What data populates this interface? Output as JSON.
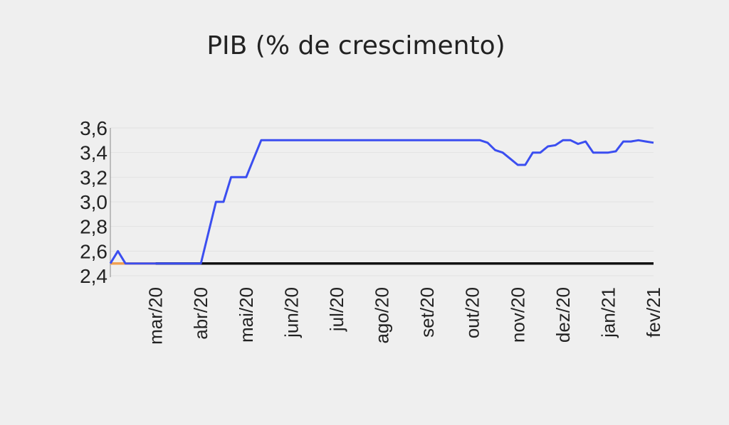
{
  "chart_data": {
    "type": "line",
    "title": "PIB (% de crescimento)",
    "categories": [
      null,
      null,
      null,
      null,
      null,
      null,
      "mar/20",
      null,
      null,
      null,
      null,
      null,
      "abr/20",
      null,
      null,
      null,
      null,
      null,
      "mai/20",
      null,
      null,
      null,
      null,
      null,
      "jun/20",
      null,
      null,
      null,
      null,
      null,
      "jul/20",
      null,
      null,
      null,
      null,
      null,
      "ago/20",
      null,
      null,
      null,
      null,
      null,
      "set/20",
      null,
      null,
      null,
      null,
      null,
      "out/20",
      null,
      null,
      null,
      null,
      null,
      "nov/20",
      null,
      null,
      null,
      null,
      null,
      "dez/20",
      null,
      null,
      null,
      null,
      null,
      "jan/21",
      null,
      null,
      null,
      null,
      null,
      "fev/21"
    ],
    "series": [
      {
        "color": "#3b4ef0",
        "values": [
          2.5,
          2.6,
          2.5,
          2.5,
          2.5,
          2.5,
          2.5,
          2.5,
          2.5,
          2.5,
          2.5,
          2.5,
          2.5,
          2.75,
          3.0,
          3.0,
          3.2,
          3.2,
          3.2,
          3.35,
          3.5,
          3.5,
          3.5,
          3.5,
          3.5,
          3.5,
          3.5,
          3.5,
          3.5,
          3.5,
          3.5,
          3.5,
          3.5,
          3.5,
          3.5,
          3.5,
          3.5,
          3.5,
          3.5,
          3.5,
          3.5,
          3.5,
          3.5,
          3.5,
          3.5,
          3.5,
          3.5,
          3.5,
          3.5,
          3.5,
          3.48,
          3.42,
          3.4,
          3.35,
          3.3,
          3.3,
          3.4,
          3.4,
          3.45,
          3.46,
          3.5,
          3.5,
          3.47,
          3.49,
          3.4,
          3.4,
          3.4,
          3.41,
          3.49,
          3.49,
          3.5,
          3.49,
          3.48
        ]
      },
      {
        "color": "#f0a050",
        "values": [
          2.5,
          2.5,
          2.5,
          2.5,
          2.5,
          2.5,
          2.5,
          null,
          null,
          null,
          null,
          null,
          null,
          null,
          null,
          null,
          null,
          null,
          null,
          null,
          null,
          null,
          null,
          null,
          null,
          null,
          null,
          null,
          null,
          null,
          null,
          null,
          null,
          null,
          null,
          null,
          null,
          null,
          null,
          null,
          null,
          null,
          null,
          null,
          null,
          null,
          null,
          null,
          null,
          null,
          null,
          null,
          null,
          null,
          null,
          null,
          null,
          null,
          null,
          null,
          null,
          null,
          null,
          null,
          null,
          null,
          null,
          null,
          null,
          null,
          null,
          null,
          null
        ]
      },
      {
        "color": "#111111",
        "values": [
          null,
          null,
          null,
          null,
          null,
          null,
          2.5,
          2.5,
          2.5,
          2.5,
          2.5,
          2.5,
          2.5,
          2.5,
          2.5,
          2.5,
          2.5,
          2.5,
          2.5,
          2.5,
          2.5,
          2.5,
          2.5,
          2.5,
          2.5,
          2.5,
          2.5,
          2.5,
          2.5,
          2.5,
          2.5,
          2.5,
          2.5,
          2.5,
          2.5,
          2.5,
          2.5,
          2.5,
          2.5,
          2.5,
          2.5,
          2.5,
          2.5,
          2.5,
          2.5,
          2.5,
          2.5,
          2.5,
          2.5,
          2.5,
          2.5,
          2.5,
          2.5,
          2.5,
          2.5,
          2.5,
          2.5,
          2.5,
          2.5,
          2.5,
          2.5,
          2.5,
          2.5,
          2.5,
          2.5,
          2.5,
          2.5,
          2.5,
          2.5,
          2.5,
          2.5,
          2.5,
          2.5
        ]
      }
    ],
    "ylim": [
      2.4,
      3.6
    ],
    "yticks": [
      {
        "value": 2.4,
        "label": "2,4"
      },
      {
        "value": 2.6,
        "label": "2,6"
      },
      {
        "value": 2.8,
        "label": "2,8"
      },
      {
        "value": 3.0,
        "label": "3,0"
      },
      {
        "value": 3.2,
        "label": "3,2"
      },
      {
        "value": 3.4,
        "label": "3,4"
      },
      {
        "value": 3.6,
        "label": "3,6"
      }
    ],
    "grid": true
  }
}
